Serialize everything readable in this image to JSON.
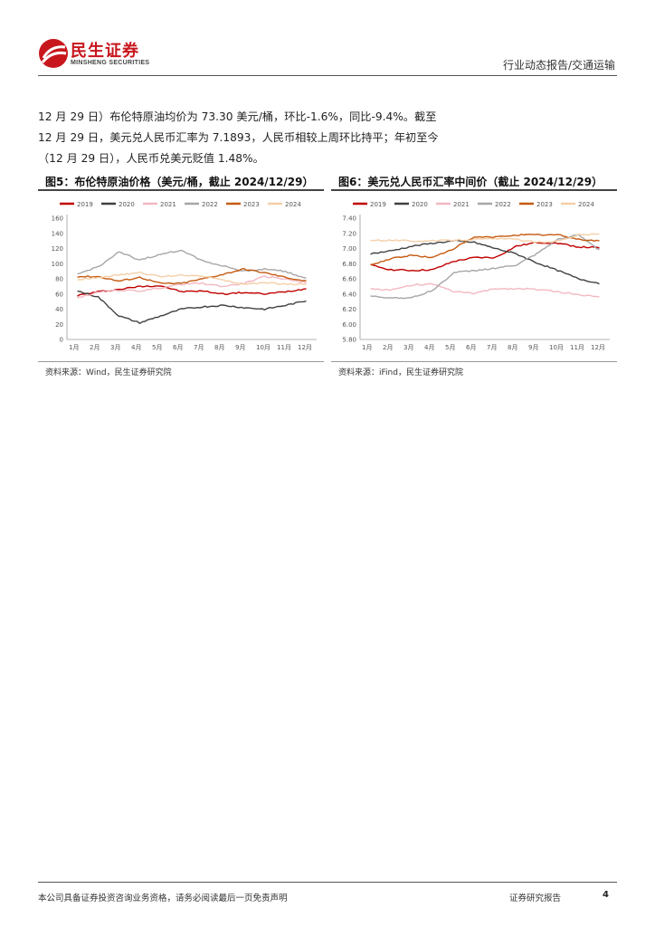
{
  "header": {
    "brand_cn": "民生证券",
    "brand_en": "MINSHENG SECURITIES",
    "section": "行业动态报告/交通运输"
  },
  "body_text": [
    "12 月 29 日）布伦特原油均价为 73.30 美元/桶，环比-1.6%，同比-9.4%。截至",
    "12 月 29 日，美元兑人民币汇率为 7.1893，人民币相较上周环比持平；年初至今",
    "（12 月 29 日），人民币兑美元贬值 1.48%。"
  ],
  "figures": [
    {
      "title": "图5：布伦特原油价格（美元/桶，截止 2024/12/29）",
      "source": "资料来源：Wind，民生证券研究院"
    },
    {
      "title": "图6：美元兑人民币汇率中间价（截止 2024/12/29）",
      "source": "资料来源：iFind，民生证券研究院"
    }
  ],
  "chart_data": [
    {
      "type": "line",
      "title": "布伦特原油价格（美元/桶，截止 2024/12/29）",
      "xlabel": "",
      "ylabel": "",
      "categories": [
        "1月",
        "2月",
        "3月",
        "4月",
        "5月",
        "6月",
        "7月",
        "8月",
        "9月",
        "10月",
        "11月",
        "12月"
      ],
      "ylim": [
        0,
        160
      ],
      "yticks": [
        "0",
        "20",
        "40",
        "60",
        "80",
        "100",
        "120",
        "140",
        "160"
      ],
      "legend": "top",
      "series": [
        {
          "name": "2019",
          "color": "#c00000",
          "values": [
            58,
            63,
            66,
            70,
            71,
            63,
            64,
            60,
            62,
            60,
            63,
            67
          ]
        },
        {
          "name": "2020",
          "color": "#404040",
          "values": [
            64,
            56,
            31,
            22,
            31,
            40,
            43,
            45,
            42,
            40,
            45,
            51
          ]
        },
        {
          "name": "2021",
          "color": "#f2b8c2",
          "values": [
            55,
            62,
            65,
            64,
            68,
            73,
            74,
            70,
            74,
            83,
            80,
            75
          ]
        },
        {
          "name": "2022",
          "color": "#a6a6a6",
          "values": [
            86,
            96,
            115,
            105,
            112,
            118,
            104,
            97,
            90,
            93,
            90,
            80
          ]
        },
        {
          "name": "2023",
          "color": "#c55a11",
          "values": [
            83,
            83,
            77,
            82,
            74,
            74,
            80,
            86,
            93,
            88,
            82,
            77
          ]
        },
        {
          "name": "2024",
          "color": "#f4cfa8",
          "values": [
            79,
            82,
            85,
            88,
            83,
            85,
            84,
            78,
            73,
            75,
            73,
            73
          ]
        }
      ]
    },
    {
      "type": "line",
      "title": "美元兑人民币汇率中间价（截止 2024/12/29）",
      "xlabel": "",
      "ylabel": "",
      "categories": [
        "1月",
        "2月",
        "3月",
        "4月",
        "5月",
        "6月",
        "7月",
        "8月",
        "9月",
        "10月",
        "11月",
        "12月"
      ],
      "ylim": [
        5.8,
        7.4
      ],
      "yticks": [
        "5.80",
        "6.00",
        "6.20",
        "6.40",
        "6.60",
        "6.80",
        "7.00",
        "7.20",
        "7.40"
      ],
      "legend": "top",
      "series": [
        {
          "name": "2019",
          "color": "#c00000",
          "values": [
            6.78,
            6.72,
            6.71,
            6.72,
            6.83,
            6.88,
            6.88,
            7.03,
            7.08,
            7.07,
            7.02,
            7.01
          ]
        },
        {
          "name": "2020",
          "color": "#404040",
          "values": [
            6.93,
            6.97,
            7.03,
            7.07,
            7.1,
            7.08,
            7.0,
            6.93,
            6.81,
            6.71,
            6.6,
            6.54
          ]
        },
        {
          "name": "2021",
          "color": "#f2b8c2",
          "values": [
            6.47,
            6.45,
            6.52,
            6.53,
            6.43,
            6.41,
            6.47,
            6.47,
            6.46,
            6.43,
            6.39,
            6.37
          ]
        },
        {
          "name": "2022",
          "color": "#a6a6a6",
          "values": [
            6.37,
            6.35,
            6.35,
            6.45,
            6.68,
            6.71,
            6.74,
            6.78,
            6.93,
            7.12,
            7.18,
            6.98
          ]
        },
        {
          "name": "2023",
          "color": "#c55a11",
          "values": [
            6.78,
            6.87,
            6.91,
            6.88,
            7.0,
            7.15,
            7.15,
            7.18,
            7.18,
            7.18,
            7.12,
            7.1
          ]
        },
        {
          "name": "2024",
          "color": "#f4cfa8",
          "values": [
            7.11,
            7.11,
            7.1,
            7.1,
            7.11,
            7.12,
            7.13,
            7.12,
            7.08,
            7.1,
            7.18,
            7.19
          ]
        }
      ]
    }
  ],
  "footer": {
    "disclaimer": "本公司具备证券投资咨询业务资格，请务必阅读最后一页免责声明",
    "report_type": "证券研究报告",
    "page": "4"
  }
}
